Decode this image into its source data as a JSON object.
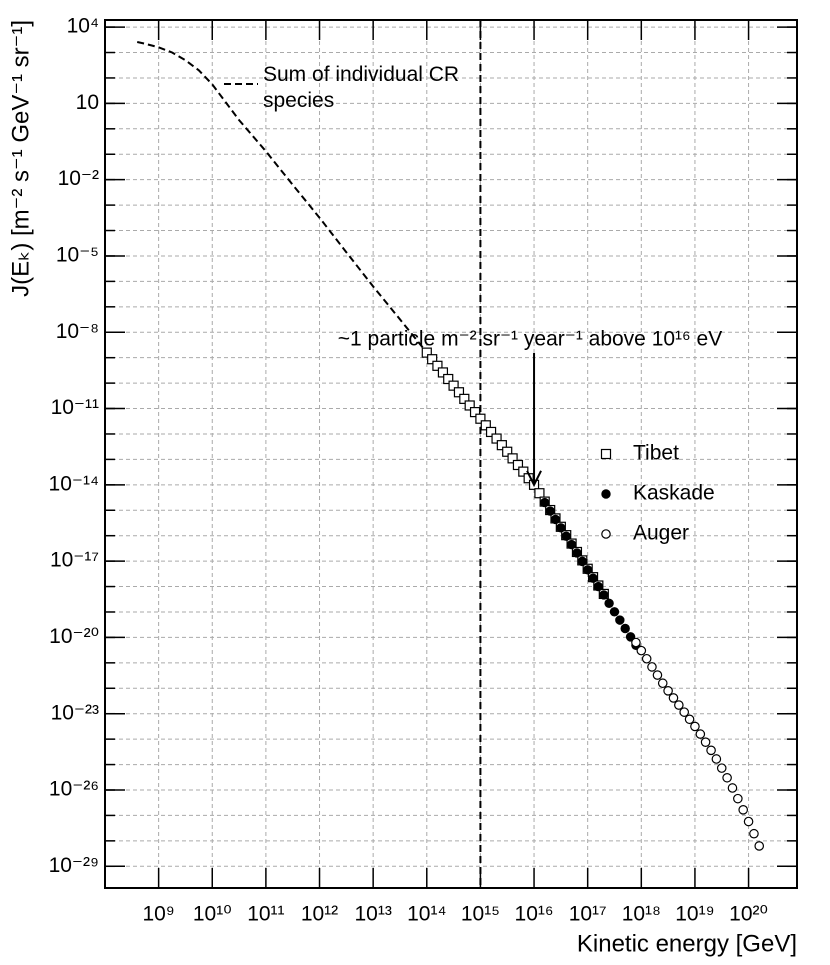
{
  "chart_data": {
    "type": "scatter",
    "xlabel": "Kinetic energy [GeV]",
    "ylabel": "J(Eₖ) [m⁻² s⁻¹ GeV⁻¹ sr⁻¹]",
    "xscale": "log",
    "yscale": "log",
    "grid": true,
    "xlim": [
      100000000.0,
      8e+20
    ],
    "ylim": [
      1.4e-30,
      19000.0
    ],
    "xticks": [
      {
        "value": 1000000000.0,
        "label": "10⁹"
      },
      {
        "value": 10000000000.0,
        "label": "10¹⁰"
      },
      {
        "value": 100000000000.0,
        "label": "10¹¹"
      },
      {
        "value": 1000000000000.0,
        "label": "10¹²"
      },
      {
        "value": 10000000000000.0,
        "label": "10¹³"
      },
      {
        "value": 100000000000000.0,
        "label": "10¹⁴"
      },
      {
        "value": 1000000000000000.0,
        "label": "10¹⁵"
      },
      {
        "value": 1e+16,
        "label": "10¹⁶"
      },
      {
        "value": 1e+17,
        "label": "10¹⁷"
      },
      {
        "value": 1e+18,
        "label": "10¹⁸"
      },
      {
        "value": 1e+19,
        "label": "10¹⁹"
      },
      {
        "value": 1e+20,
        "label": "10²⁰"
      }
    ],
    "yticks": [
      {
        "value": 10000.0,
        "label": "10⁴"
      },
      10,
      {
        "value": 0.01,
        "label": "10⁻²"
      },
      {
        "value": 1e-05,
        "label": "10⁻⁵"
      },
      {
        "value": 1e-08,
        "label": "10⁻⁸"
      },
      {
        "value": 1e-11,
        "label": "10⁻¹¹"
      },
      {
        "value": 1e-14,
        "label": "10⁻¹⁴"
      },
      {
        "value": 1e-17,
        "label": "10⁻¹⁷"
      },
      {
        "value": 1e-20,
        "label": "10⁻²⁰"
      },
      {
        "value": 1e-23,
        "label": "10⁻²³"
      },
      {
        "value": 1e-26,
        "label": "10⁻²⁶"
      },
      {
        "value": 1e-29,
        "label": "10⁻²⁹"
      }
    ],
    "ygrid": [
      10000.0,
      1000.0,
      100.0,
      10.0,
      1,
      0.1,
      0.01,
      0.001,
      0.0001,
      1e-05,
      1e-06,
      1e-07,
      1e-08,
      1e-09,
      1e-10,
      1e-11,
      1e-12,
      1e-13,
      1e-14,
      1e-15,
      1e-16,
      1e-17,
      1e-18,
      1e-19,
      1e-20,
      1e-21,
      1e-22,
      1e-23,
      1e-24,
      1e-25,
      1e-26,
      1e-27,
      1e-28,
      1e-29
    ],
    "reference_line_x": 1000000000000000.0,
    "annotation": "~1 particle m⁻² sr⁻¹ year⁻¹ above 10¹⁶ eV",
    "arrow_x": 1e+16,
    "arrow_y": 1e-14,
    "series": [
      {
        "name": "Sum of individual CR species",
        "marker": "dashed-line",
        "color": "#000000",
        "x": [
          398000000.0,
          562000000.0,
          1000000000.0,
          1780000000.0,
          3160000000.0,
          5620000000.0,
          10000000000.0,
          31600000000.0,
          100000000000.0,
          316000000000.0,
          1000000000000.0,
          3160000000000.0,
          10000000000000.0,
          31600000000000.0,
          100000000000000.0
        ],
        "values": [
          2600.0,
          2200.0,
          1600.0,
          1000.0,
          500.0,
          200.0,
          56,
          2.2,
          0.13,
          0.0063,
          0.00032,
          1.4e-05,
          6.3e-07,
          3.2e-08,
          1.6e-09
        ]
      },
      {
        "name": "Tibet",
        "marker": "square-open",
        "color": "#000000",
        "x": [
          100000000000000.0,
          126000000000000.0,
          158000000000000.0,
          200000000000000.0,
          251000000000000.0,
          316000000000000.0,
          398000000000000.0,
          501000000000000.0,
          631000000000000.0,
          794000000000000.0,
          1000000000000000.0,
          1260000000000000.0,
          1580000000000000.0,
          2000000000000000.0,
          2510000000000000.0,
          3160000000000000.0,
          3980000000000000.0,
          5010000000000000.0,
          6310000000000000.0,
          7940000000000000.0,
          1e+16,
          1.26e+16,
          1.58e+16,
          2e+16,
          2.51e+16,
          3.16e+16,
          3.98e+16,
          5.01e+16,
          6.31e+16,
          7.94e+16,
          1e+17,
          1.26e+17,
          1.58e+17,
          2e+17
        ],
        "values": [
          1.58e-09,
          8.71e-10,
          4.79e-10,
          2.63e-10,
          1.45e-10,
          7.94e-11,
          4.37e-11,
          2.4e-11,
          1.32e-11,
          7.24e-12,
          3.98e-12,
          2.19e-12,
          1.2e-12,
          6.61e-13,
          3.63e-13,
          2e-13,
          1.1e-13,
          6.03e-14,
          3.31e-14,
          1.82e-14,
          1e-14,
          4.68e-15,
          2.19e-15,
          1.02e-15,
          4.79e-16,
          2.24e-16,
          1.05e-16,
          4.9e-17,
          2.29e-17,
          1.07e-17,
          5.01e-18,
          2.34e-18,
          1.1e-18,
          5.13e-19
        ]
      },
      {
        "name": "Kaskade",
        "marker": "circle-filled",
        "color": "#000000",
        "x": [
          1.58e+16,
          2e+16,
          2.51e+16,
          3.16e+16,
          3.98e+16,
          5.01e+16,
          6.31e+16,
          7.94e+16,
          1e+17,
          1.26e+17,
          1.58e+17,
          2e+17,
          2.51e+17,
          3.16e+17,
          3.98e+17,
          5.01e+17,
          6.31e+17,
          7.94e+17
        ],
        "values": [
          2e-15,
          9.33e-16,
          4.37e-16,
          2.04e-16,
          9.55e-17,
          4.47e-17,
          2.09e-17,
          9.77e-18,
          4.57e-18,
          2.14e-18,
          1e-18,
          4.68e-19,
          2.19e-19,
          1.02e-19,
          4.79e-20,
          2.24e-20,
          1.05e-20,
          4.9e-21
        ]
      },
      {
        "name": "Auger",
        "marker": "circle-open",
        "color": "#000000",
        "x": [
          7.94e+17,
          1e+18,
          1.26e+18,
          1.58e+18,
          2e+18,
          2.51e+18,
          3.16e+18,
          3.98e+18,
          5.01e+18,
          6.31e+18,
          7.94e+18,
          1e+19,
          1.26e+19,
          1.58e+19,
          2e+19,
          2.51e+19,
          3.16e+19,
          3.98e+19,
          5.01e+19,
          6.31e+19,
          7.94e+19,
          1e+20,
          1.26e+20,
          1.58e+20
        ],
        "values": [
          6.31e-21,
          3.02e-21,
          1.45e-21,
          6.92e-22,
          3.31e-22,
          1.58e-22,
          7.94e-23,
          4.17e-23,
          2.19e-23,
          1.15e-23,
          6.03e-24,
          3.16e-24,
          1.58e-24,
          7.59e-25,
          3.63e-25,
          1.66e-25,
          7.24e-26,
          3.02e-26,
          1.2e-26,
          4.57e-27,
          1.66e-27,
          5.75e-28,
          1.91e-28,
          6.31e-29
        ]
      }
    ]
  }
}
